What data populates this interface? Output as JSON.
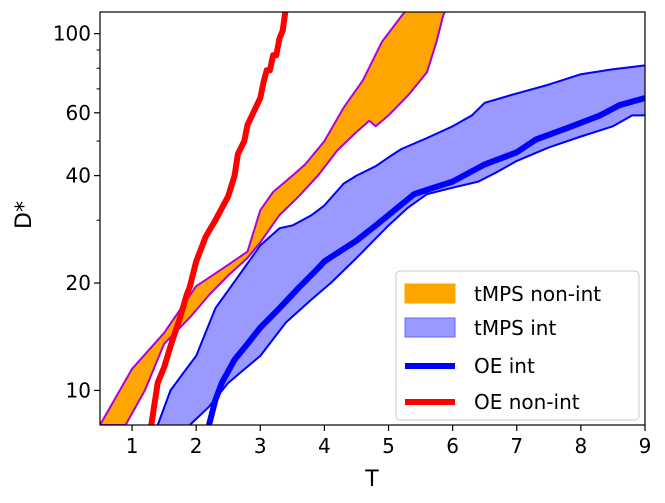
{
  "chart_data": {
    "type": "line",
    "xlabel": "T",
    "ylabel": "D*",
    "xlim": [
      0.5,
      9.0
    ],
    "ylim": [
      8.0,
      115.0
    ],
    "yscale": "log",
    "x_ticks": [
      1,
      2,
      3,
      4,
      5,
      6,
      7,
      8,
      9
    ],
    "x_tick_labels": [
      "1",
      "2",
      "3",
      "4",
      "5",
      "6",
      "7",
      "8",
      "9"
    ],
    "y_ticks": [
      10,
      20,
      40,
      60,
      100
    ],
    "y_tick_labels": [
      "10",
      "20",
      "40",
      "60",
      "100"
    ],
    "y_minor_ticks": [
      30,
      50,
      70,
      80,
      90
    ],
    "legend_position": "lower-right",
    "series": [
      {
        "name": "tMPS non-int",
        "kind": "band",
        "fill": "#FFA500",
        "edge": "#B000D8",
        "upper": [
          [
            0.5,
            8.0
          ],
          [
            1.0,
            11.5
          ],
          [
            1.5,
            14.5
          ],
          [
            2.0,
            19.6
          ],
          [
            2.5,
            22.5
          ],
          [
            2.8,
            24.5
          ],
          [
            3.0,
            32.0
          ],
          [
            3.2,
            36.0
          ],
          [
            3.5,
            40.0
          ],
          [
            3.7,
            43.0
          ],
          [
            4.0,
            50.0
          ],
          [
            4.3,
            62.0
          ],
          [
            4.6,
            74.0
          ],
          [
            4.9,
            95.0
          ],
          [
            5.2,
            112.0
          ],
          [
            5.3,
            118.0
          ]
        ],
        "lower": [
          [
            0.5,
            8.0
          ],
          [
            0.9,
            8.0
          ],
          [
            1.2,
            10.0
          ],
          [
            1.5,
            13.5
          ],
          [
            1.9,
            16.0
          ],
          [
            2.2,
            18.5
          ],
          [
            2.5,
            21.0
          ],
          [
            2.8,
            23.5
          ],
          [
            3.0,
            26.0
          ],
          [
            3.3,
            31.0
          ],
          [
            3.6,
            35.0
          ],
          [
            3.9,
            40.0
          ],
          [
            4.2,
            47.0
          ],
          [
            4.5,
            53.0
          ],
          [
            4.7,
            57.0
          ],
          [
            4.8,
            55.0
          ],
          [
            5.0,
            59.0
          ],
          [
            5.3,
            67.0
          ],
          [
            5.6,
            78.0
          ],
          [
            5.75,
            95.0
          ],
          [
            5.85,
            112.0
          ],
          [
            5.9,
            118.0
          ]
        ]
      },
      {
        "name": "tMPS int",
        "kind": "band",
        "fill": "#9999FF",
        "edge": "#0000FF",
        "upper": [
          [
            1.4,
            8.0
          ],
          [
            1.6,
            10.0
          ],
          [
            1.8,
            11.2
          ],
          [
            2.0,
            12.5
          ],
          [
            2.3,
            17.0
          ],
          [
            2.6,
            20.2
          ],
          [
            3.0,
            25.5
          ],
          [
            3.3,
            28.5
          ],
          [
            3.5,
            29.0
          ],
          [
            3.8,
            31.0
          ],
          [
            4.0,
            33.0
          ],
          [
            4.3,
            38.0
          ],
          [
            4.5,
            40.0
          ],
          [
            4.8,
            42.5
          ],
          [
            5.0,
            45.0
          ],
          [
            5.2,
            47.5
          ],
          [
            5.6,
            51.0
          ],
          [
            6.0,
            55.0
          ],
          [
            6.3,
            59.0
          ],
          [
            6.5,
            64.0
          ],
          [
            7.0,
            68.0
          ],
          [
            7.5,
            72.0
          ],
          [
            8.0,
            77.0
          ],
          [
            8.5,
            79.5
          ],
          [
            9.0,
            81.5
          ]
        ],
        "lower": [
          [
            1.9,
            8.0
          ],
          [
            2.2,
            9.0
          ],
          [
            2.5,
            10.5
          ],
          [
            3.0,
            12.5
          ],
          [
            3.4,
            15.5
          ],
          [
            3.8,
            18.0
          ],
          [
            4.1,
            20.0
          ],
          [
            4.5,
            23.5
          ],
          [
            5.0,
            29.0
          ],
          [
            5.3,
            32.5
          ],
          [
            5.6,
            35.5
          ],
          [
            6.0,
            37.0
          ],
          [
            6.4,
            38.5
          ],
          [
            6.7,
            41.0
          ],
          [
            7.0,
            44.0
          ],
          [
            7.5,
            48.0
          ],
          [
            8.0,
            51.5
          ],
          [
            8.5,
            55.0
          ],
          [
            8.8,
            59.0
          ],
          [
            9.0,
            59.0
          ]
        ]
      },
      {
        "name": "OE int",
        "kind": "line",
        "color": "#0000FF",
        "points": [
          [
            2.2,
            8.0
          ],
          [
            2.3,
            9.4
          ],
          [
            2.4,
            10.5
          ],
          [
            2.6,
            12.2
          ],
          [
            2.8,
            13.5
          ],
          [
            3.0,
            15.0
          ],
          [
            3.3,
            17.0
          ],
          [
            3.6,
            19.4
          ],
          [
            3.9,
            22.0
          ],
          [
            4.0,
            23.0
          ],
          [
            4.5,
            26.3
          ],
          [
            4.8,
            29.0
          ],
          [
            5.0,
            31.0
          ],
          [
            5.4,
            35.5
          ],
          [
            5.7,
            37.0
          ],
          [
            6.0,
            38.5
          ],
          [
            6.5,
            43.0
          ],
          [
            7.0,
            46.5
          ],
          [
            7.3,
            50.5
          ],
          [
            7.8,
            54.5
          ],
          [
            8.3,
            59.0
          ],
          [
            8.6,
            63.0
          ],
          [
            9.0,
            66.0
          ]
        ]
      },
      {
        "name": "OE non-int",
        "kind": "line",
        "color": "#FF0000",
        "points": [
          [
            1.3,
            8.0
          ],
          [
            1.4,
            10.5
          ],
          [
            1.5,
            11.6
          ],
          [
            1.6,
            13.3
          ],
          [
            1.75,
            16.0
          ],
          [
            1.85,
            18.5
          ],
          [
            1.9,
            19.5
          ],
          [
            2.0,
            23.0
          ],
          [
            2.15,
            27.0
          ],
          [
            2.3,
            30.0
          ],
          [
            2.5,
            35.0
          ],
          [
            2.6,
            40.0
          ],
          [
            2.65,
            46.0
          ],
          [
            2.75,
            50.0
          ],
          [
            2.8,
            55.5
          ],
          [
            2.9,
            60.5
          ],
          [
            3.0,
            66.0
          ],
          [
            3.05,
            73.0
          ],
          [
            3.1,
            79.0
          ],
          [
            3.15,
            79.0
          ],
          [
            3.2,
            87.0
          ],
          [
            3.25,
            87.0
          ],
          [
            3.3,
            97.0
          ],
          [
            3.35,
            102.0
          ],
          [
            3.38,
            112.0
          ],
          [
            3.4,
            118.0
          ]
        ]
      }
    ]
  }
}
